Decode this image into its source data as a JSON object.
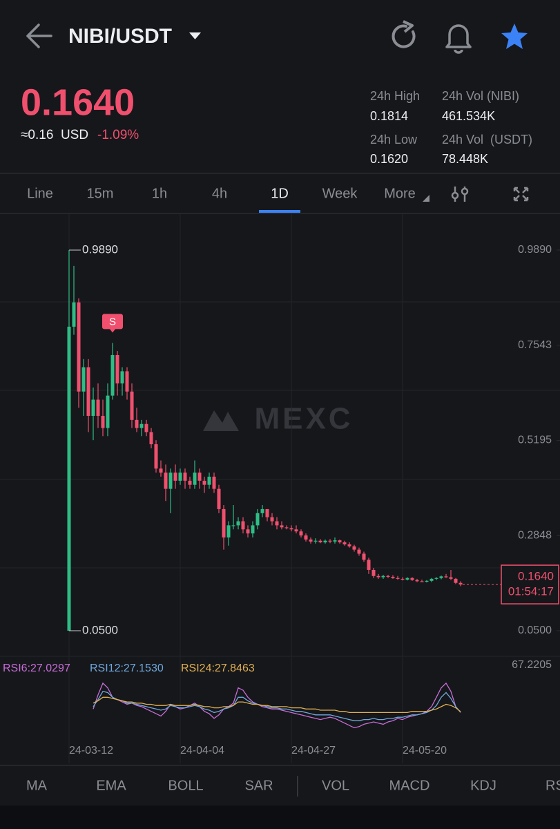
{
  "header": {
    "pair": "NIBI/USDT",
    "price": "0.1640",
    "usd_value": "≈0.16  USD",
    "change": "-1.09%",
    "stats": [
      {
        "label": "24h High",
        "value": "0.1814"
      },
      {
        "label": "24h Vol (NIBI)",
        "value": "461.534K"
      },
      {
        "label": "24h Low",
        "value": "0.1620"
      },
      {
        "label": "24h Vol  (USDT)",
        "value": "78.448K"
      }
    ]
  },
  "tabs": [
    "Line",
    "15m",
    "1h",
    "4h",
    "1D",
    "Week",
    "More"
  ],
  "indicators": [
    "MA",
    "EMA",
    "BOLL",
    "SAR",
    "VOL",
    "MACD",
    "KDJ",
    "RS"
  ],
  "chart_data": [
    {
      "type": "candlestick",
      "watermark": "MEXC",
      "ylim": [
        -0.0131,
        1.0776
      ],
      "yticks": [
        {
          "value": 0.989,
          "label": "0.9890"
        },
        0.7543,
        0.5195,
        0.2848,
        {
          "value": 0.05,
          "label": "0.0500"
        }
      ],
      "xticks": [
        {
          "value": 0,
          "label": "24-03-12"
        },
        {
          "value": 23,
          "label": "24-04-04"
        },
        {
          "value": 46,
          "label": "24-04-27"
        },
        {
          "value": 69,
          "label": "24-05-20"
        }
      ],
      "up_color": "#2ebd85",
      "down_color": "#f0506e",
      "high_marker": {
        "value": 0.989,
        "label": "0.9890"
      },
      "low_marker": {
        "value": 0.05,
        "label": "0.0500"
      },
      "signal": {
        "index": 9,
        "label": "S"
      },
      "last_price": {
        "value": 0.164,
        "label": "0.1640",
        "countdown": "01:54:17"
      },
      "ohlc": [
        [
          0.05,
          0.989,
          0.05,
          0.8
        ],
        [
          0.8,
          0.95,
          0.78,
          0.86
        ],
        [
          0.86,
          0.87,
          0.6,
          0.64
        ],
        [
          0.64,
          0.72,
          0.58,
          0.7
        ],
        [
          0.7,
          0.72,
          0.54,
          0.58
        ],
        [
          0.58,
          0.65,
          0.52,
          0.62
        ],
        [
          0.62,
          0.66,
          0.55,
          0.58
        ],
        [
          0.58,
          0.62,
          0.53,
          0.55
        ],
        [
          0.55,
          0.66,
          0.53,
          0.63
        ],
        [
          0.63,
          0.76,
          0.62,
          0.73
        ],
        [
          0.73,
          0.74,
          0.63,
          0.66
        ],
        [
          0.66,
          0.7,
          0.63,
          0.69
        ],
        [
          0.69,
          0.7,
          0.62,
          0.64
        ],
        [
          0.64,
          0.66,
          0.55,
          0.57
        ],
        [
          0.57,
          0.6,
          0.54,
          0.55
        ],
        [
          0.55,
          0.57,
          0.53,
          0.56
        ],
        [
          0.56,
          0.57,
          0.53,
          0.54
        ],
        [
          0.54,
          0.55,
          0.5,
          0.51
        ],
        [
          0.51,
          0.52,
          0.44,
          0.45
        ],
        [
          0.45,
          0.47,
          0.43,
          0.44
        ],
        [
          0.44,
          0.46,
          0.37,
          0.4
        ],
        [
          0.4,
          0.45,
          0.34,
          0.44
        ],
        [
          0.44,
          0.46,
          0.4,
          0.42
        ],
        [
          0.42,
          0.45,
          0.41,
          0.44
        ],
        [
          0.44,
          0.45,
          0.4,
          0.42
        ],
        [
          0.42,
          0.43,
          0.4,
          0.41
        ],
        [
          0.41,
          0.47,
          0.4,
          0.44
        ],
        [
          0.44,
          0.45,
          0.4,
          0.42
        ],
        [
          0.42,
          0.43,
          0.39,
          0.41
        ],
        [
          0.41,
          0.44,
          0.4,
          0.43
        ],
        [
          0.43,
          0.44,
          0.39,
          0.4
        ],
        [
          0.4,
          0.41,
          0.34,
          0.35
        ],
        [
          0.35,
          0.36,
          0.25,
          0.28
        ],
        [
          0.28,
          0.32,
          0.26,
          0.31
        ],
        [
          0.31,
          0.36,
          0.3,
          0.31
        ],
        [
          0.31,
          0.33,
          0.3,
          0.32
        ],
        [
          0.32,
          0.33,
          0.29,
          0.3
        ],
        [
          0.3,
          0.31,
          0.28,
          0.29
        ],
        [
          0.29,
          0.32,
          0.28,
          0.31
        ],
        [
          0.31,
          0.35,
          0.3,
          0.34
        ],
        [
          0.34,
          0.36,
          0.33,
          0.35
        ],
        [
          0.35,
          0.35,
          0.32,
          0.33
        ],
        [
          0.33,
          0.34,
          0.31,
          0.32
        ],
        [
          0.32,
          0.33,
          0.3,
          0.31
        ],
        [
          0.31,
          0.32,
          0.3,
          0.305
        ],
        [
          0.305,
          0.31,
          0.3,
          0.303
        ],
        [
          0.303,
          0.31,
          0.295,
          0.3
        ],
        [
          0.3,
          0.31,
          0.29,
          0.295
        ],
        [
          0.295,
          0.3,
          0.28,
          0.285
        ],
        [
          0.285,
          0.29,
          0.27,
          0.275
        ],
        [
          0.275,
          0.28,
          0.265,
          0.27
        ],
        [
          0.27,
          0.278,
          0.265,
          0.272
        ],
        [
          0.272,
          0.276,
          0.266,
          0.268
        ],
        [
          0.268,
          0.275,
          0.265,
          0.272
        ],
        [
          0.272,
          0.276,
          0.266,
          0.27
        ],
        [
          0.27,
          0.28,
          0.265,
          0.273
        ],
        [
          0.273,
          0.275,
          0.265,
          0.268
        ],
        [
          0.268,
          0.272,
          0.26,
          0.263
        ],
        [
          0.263,
          0.268,
          0.255,
          0.258
        ],
        [
          0.258,
          0.262,
          0.245,
          0.25
        ],
        [
          0.25,
          0.255,
          0.235,
          0.24
        ],
        [
          0.24,
          0.245,
          0.22,
          0.225
        ],
        [
          0.225,
          0.23,
          0.19,
          0.2
        ],
        [
          0.2,
          0.205,
          0.18,
          0.185
        ],
        [
          0.185,
          0.19,
          0.178,
          0.182
        ],
        [
          0.182,
          0.188,
          0.178,
          0.185
        ],
        [
          0.185,
          0.188,
          0.18,
          0.183
        ],
        [
          0.183,
          0.187,
          0.178,
          0.18
        ],
        [
          0.18,
          0.185,
          0.176,
          0.178
        ],
        [
          0.178,
          0.182,
          0.174,
          0.176
        ],
        [
          0.176,
          0.182,
          0.174,
          0.18
        ],
        [
          0.18,
          0.182,
          0.173,
          0.175
        ],
        [
          0.175,
          0.178,
          0.17,
          0.172
        ],
        [
          0.172,
          0.176,
          0.17,
          0.171
        ],
        [
          0.171,
          0.175,
          0.169,
          0.173
        ],
        [
          0.173,
          0.18,
          0.17,
          0.178
        ],
        [
          0.178,
          0.182,
          0.175,
          0.18
        ],
        [
          0.18,
          0.186,
          0.177,
          0.184
        ],
        [
          0.184,
          0.19,
          0.18,
          0.182
        ],
        [
          0.182,
          0.2,
          0.175,
          0.178
        ],
        [
          0.178,
          0.18,
          0.165,
          0.168
        ],
        [
          0.168,
          0.172,
          0.16,
          0.164
        ]
      ]
    },
    {
      "type": "line",
      "ylim": [
        4.3,
        67.2205
      ],
      "yticks": [
        67.2205
      ],
      "series": [
        {
          "name": "RSI6:27.0297",
          "color": "#c86dd7",
          "values": [
            null,
            null,
            null,
            null,
            null,
            30,
            42,
            52,
            48,
            40,
            38,
            36,
            34,
            35,
            33,
            32,
            30,
            28,
            26,
            24,
            28,
            34,
            32,
            30,
            31,
            33,
            35,
            32,
            28,
            26,
            22,
            25,
            30,
            32,
            35,
            48,
            46,
            40,
            36,
            34,
            32,
            31,
            30,
            30,
            29,
            28,
            27,
            26,
            25,
            24,
            23,
            22,
            21,
            22,
            23,
            22,
            20,
            18,
            16,
            14,
            15,
            17,
            18,
            19,
            18,
            17,
            19,
            20,
            22,
            21,
            23,
            24,
            25,
            26,
            28,
            32,
            40,
            48,
            52,
            45,
            32,
            27.0297
          ]
        },
        {
          "name": "RSI12:27.1530",
          "color": "#6fa8dc",
          "values": [
            null,
            null,
            null,
            null,
            null,
            32,
            38,
            45,
            44,
            40,
            38,
            37,
            35,
            35,
            34,
            33,
            32,
            31,
            30,
            29,
            30,
            33,
            32,
            31,
            31,
            32,
            33,
            32,
            30,
            29,
            27,
            28,
            30,
            31,
            33,
            40,
            40,
            37,
            35,
            34,
            33,
            32,
            31,
            31,
            30,
            30,
            29,
            28,
            28,
            27,
            26,
            25,
            25,
            25,
            25,
            24,
            23,
            22,
            21,
            20,
            20,
            21,
            21,
            22,
            21,
            21,
            22,
            22,
            23,
            23,
            24,
            25,
            25,
            26,
            27,
            29,
            33,
            40,
            44,
            39,
            32,
            27.153
          ]
        },
        {
          "name": "RSI24:27.8463",
          "color": "#e0b050",
          "values": [
            null,
            null,
            null,
            null,
            null,
            35,
            37,
            40,
            40,
            39,
            38,
            37,
            36,
            36,
            35,
            35,
            34,
            34,
            33,
            33,
            33,
            34,
            33,
            33,
            33,
            33,
            34,
            33,
            32,
            32,
            31,
            31,
            32,
            32,
            33,
            36,
            36,
            35,
            34,
            34,
            33,
            33,
            32,
            32,
            32,
            32,
            31,
            31,
            31,
            30,
            30,
            30,
            29,
            29,
            29,
            29,
            28,
            28,
            27,
            27,
            27,
            27,
            27,
            27,
            27,
            27,
            27,
            27,
            27,
            27,
            27,
            28,
            28,
            28,
            28,
            29,
            30,
            32,
            34,
            33,
            31,
            27.8463
          ]
        }
      ]
    }
  ]
}
